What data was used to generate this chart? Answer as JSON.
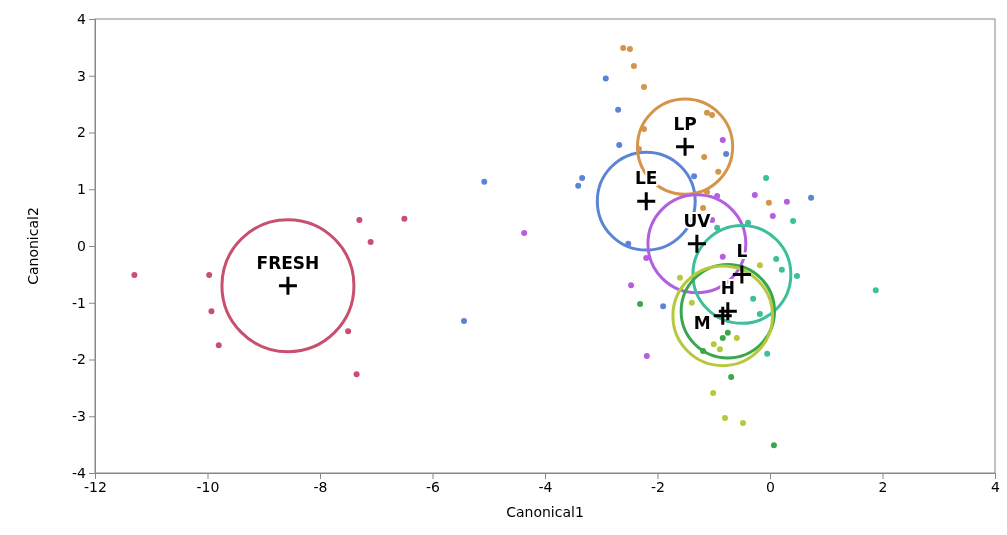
{
  "chart_data": {
    "type": "scatter",
    "xlabel": "Canonical1",
    "ylabel": "Canonical2",
    "xlim": [
      -12,
      4
    ],
    "xticks": [
      -12,
      -10,
      -8,
      -6,
      -4,
      -2,
      0,
      2,
      4
    ],
    "ylim": [
      -4,
      4
    ],
    "yticks": [
      -4,
      -3,
      -2,
      -1,
      0,
      1,
      2,
      3,
      4
    ],
    "grid": false,
    "marker": "circle",
    "series": [
      {
        "color": "#c8506e",
        "x": [
          -11.3,
          -9.97,
          -9.93,
          -9.8,
          -7.3,
          -7.1,
          -6.5,
          -7.5,
          -7.35
        ],
        "values": [
          -0.51,
          -0.51,
          -1.15,
          -1.75,
          0.46,
          0.07,
          0.48,
          -1.5,
          -2.26
        ]
      },
      {
        "color": "#5b84d6",
        "x": [
          -2.92,
          -2.7,
          -2.68,
          -3.34,
          -3.41,
          -5.08,
          -5.44,
          -1.35,
          -0.78,
          0.73,
          -2.52,
          -1.9
        ],
        "values": [
          2.95,
          2.4,
          1.78,
          1.2,
          1.06,
          1.13,
          -1.32,
          1.23,
          1.62,
          0.85,
          0.04,
          -1.06
        ]
      },
      {
        "color": "#d4954a",
        "x": [
          -2.61,
          -2.49,
          -2.42,
          -2.24,
          -1.12,
          -1.03,
          -2.24,
          -2.33,
          -1.17,
          -0.92,
          -1.12,
          -1.19,
          -0.02
        ],
        "values": [
          3.49,
          3.47,
          3.17,
          2.8,
          2.35,
          2.31,
          2.06,
          1.71,
          1.57,
          1.31,
          0.95,
          0.67,
          0.76
        ]
      },
      {
        "color": "#b45fe0",
        "x": [
          -0.84,
          -0.94,
          -0.27,
          0.3,
          0.05,
          -1.03,
          -2.2,
          -2.47,
          -0.84,
          -2.19,
          -4.37
        ],
        "values": [
          1.87,
          0.88,
          0.9,
          0.78,
          0.53,
          0.46,
          -0.21,
          -0.69,
          -0.19,
          -1.94,
          0.23
        ]
      },
      {
        "color": "#3cbf9a",
        "x": [
          -0.07,
          0.41,
          -0.39,
          0.11,
          0.21,
          0.48,
          1.88,
          -0.3,
          -0.18,
          -0.05,
          -0.94
        ],
        "values": [
          1.2,
          0.44,
          0.41,
          -0.23,
          -0.42,
          -0.53,
          -0.78,
          -0.93,
          -1.2,
          -1.9,
          0.32
        ]
      },
      {
        "color": "#3aa84a",
        "x": [
          -2.31,
          -0.69,
          0.07,
          -1.19,
          -0.84,
          -0.75
        ],
        "values": [
          -1.02,
          -2.31,
          -3.51,
          -1.85,
          -1.62,
          -1.53
        ]
      },
      {
        "color": "#b8c83c",
        "x": [
          -1.01,
          -0.8,
          -0.48,
          -0.89,
          -0.59,
          -1.0,
          -1.6,
          -0.18,
          -1.39
        ],
        "values": [
          -2.59,
          -3.03,
          -3.12,
          -1.82,
          -1.62,
          -1.73,
          -0.56,
          -0.34,
          -1.0
        ]
      },
      {
        "type": "scatter",
        "marker": "cross",
        "color": "#000000",
        "x": [
          -8.57,
          -2.2,
          -1.51,
          -1.3,
          -0.5,
          -0.75,
          -0.84
        ],
        "values": [
          -0.7,
          0.79,
          1.75,
          0.04,
          -0.5,
          -1.15,
          -1.23
        ]
      },
      {
        "type": "bubble",
        "colors": [
          "#c8506e",
          "#5b84d6",
          "#d4954a",
          "#b45fe0",
          "#3cbf9a",
          "#3aa84a",
          "#b8c83c"
        ],
        "x": [
          -8.57,
          -2.2,
          -1.51,
          -1.3,
          -0.5,
          -0.75,
          -0.84
        ],
        "values": [
          -0.7,
          0.79,
          1.75,
          0.04,
          -0.5,
          -1.15,
          -1.23
        ],
        "sizes": [
          1,
          0.55,
          0.52,
          0.55,
          0.55,
          0.5,
          0.57
        ]
      }
    ],
    "annotations": [
      {
        "text": "FRESH",
        "x": -8.57,
        "y": -0.7
      },
      {
        "text": "LP",
        "x": -1.51,
        "y": 1.75
      },
      {
        "text": "LE",
        "x": -2.2,
        "y": 0.79
      },
      {
        "text": "UV",
        "x": -1.3,
        "y": 0.04
      },
      {
        "text": "L",
        "x": -0.5,
        "y": -0.5
      },
      {
        "text": "H",
        "x": -0.75,
        "y": -1.15
      },
      {
        "text": "M",
        "x": -0.84,
        "y": -1.23
      }
    ]
  }
}
